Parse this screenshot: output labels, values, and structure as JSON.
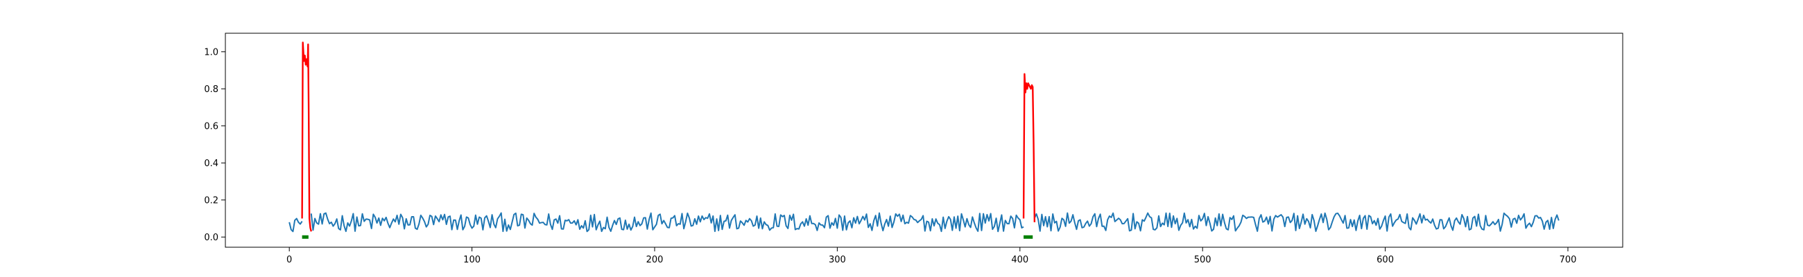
{
  "chart_data": {
    "type": "line",
    "title": "",
    "xlabel": "",
    "ylabel": "",
    "xlim": [
      -35,
      730
    ],
    "ylim": [
      -0.055,
      1.1
    ],
    "xticks": [
      0,
      100,
      200,
      300,
      400,
      500,
      600,
      700
    ],
    "yticks": [
      0.0,
      0.2,
      0.4,
      0.6,
      0.8,
      1.0
    ],
    "xtick_labels": [
      "0",
      "100",
      "200",
      "300",
      "400",
      "500",
      "600",
      "700"
    ],
    "ytick_labels": [
      "0.0",
      "0.2",
      "0.4",
      "0.6",
      "0.8",
      "1.0"
    ],
    "grid": false,
    "legend": "none",
    "n_points": 696,
    "baseline_seed": 12345,
    "baseline_range": [
      0.03,
      0.13
    ],
    "series": [
      {
        "role": "signal",
        "color": "#1f77b4",
        "x_range": [
          0,
          695
        ],
        "anchors": [
          [
            0,
            0.08
          ],
          [
            1,
            0.04
          ],
          [
            2,
            0.03
          ],
          [
            3,
            0.09
          ],
          [
            4,
            0.1
          ],
          [
            5,
            0.08
          ],
          [
            6,
            0.07
          ]
        ]
      },
      {
        "role": "anomaly",
        "color": "#ff0000",
        "segments": [
          {
            "x": [
              7,
              7.4,
              8,
              8.5,
              9,
              9.5,
              10,
              10.3,
              10.6,
              11,
              11.5,
              12
            ],
            "y": [
              0.1,
              1.05,
              0.95,
              0.98,
              0.93,
              0.96,
              0.92,
              1.04,
              0.7,
              0.1,
              0.05,
              0.03
            ]
          },
          {
            "x": [
              402,
              402.5,
              403,
              403.5,
              404,
              404.5,
              405,
              405.5,
              406,
              406.5,
              407,
              407.5,
              408
            ],
            "y": [
              0.1,
              0.88,
              0.78,
              0.83,
              0.8,
              0.83,
              0.82,
              0.81,
              0.8,
              0.82,
              0.81,
              0.5,
              0.08
            ]
          }
        ]
      },
      {
        "role": "label",
        "color": "#008000",
        "segments": [
          {
            "x": [
              7,
              10.5
            ],
            "y": [
              0.0,
              0.0
            ]
          },
          {
            "x": [
              402,
              407
            ],
            "y": [
              0.0,
              0.0
            ]
          }
        ]
      }
    ]
  }
}
